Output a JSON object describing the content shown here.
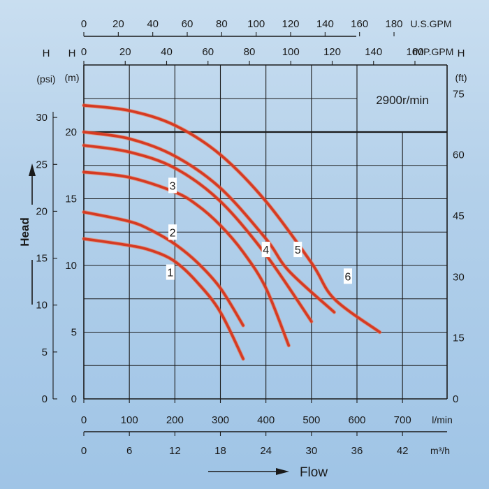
{
  "chart_data": {
    "type": "line",
    "title": "2900r/min",
    "xlabel": "Flow",
    "ylabel": "Head",
    "x_unit": "l/min",
    "xlim": [
      0,
      800
    ],
    "ylim_m": [
      0,
      25
    ],
    "x_ticks": [
      "0",
      "100",
      "200",
      "300",
      "400",
      "500",
      "600",
      "700"
    ],
    "axes": {
      "usgpm": {
        "unit": "U.S.GPM",
        "ticks": [
          "0",
          "20",
          "40",
          "60",
          "80",
          "100",
          "120",
          "140",
          "160",
          "180"
        ]
      },
      "impgpm": {
        "unit": "IMP.GPM",
        "ticks": [
          "0",
          "20",
          "40",
          "60",
          "80",
          "100",
          "120",
          "140",
          "160"
        ]
      },
      "m3h": {
        "unit": "m³/h",
        "ticks": [
          "0",
          "6",
          "12",
          "18",
          "24",
          "30",
          "36",
          "42"
        ]
      },
      "psi": {
        "title": "H",
        "unit": "(psi)",
        "ticks": [
          "0",
          "5",
          "10",
          "15",
          "20",
          "25",
          "30"
        ]
      },
      "meter": {
        "title": "H",
        "unit": "(m)",
        "ticks": [
          "0",
          "5",
          "10",
          "15",
          "20"
        ]
      },
      "feet": {
        "title": "H",
        "unit": "(ft)",
        "ticks": [
          "0",
          "15",
          "30",
          "45",
          "60",
          "75"
        ]
      }
    },
    "series": [
      {
        "name": "1",
        "x": [
          0,
          100,
          150,
          200,
          250,
          300,
          350
        ],
        "y": [
          12.0,
          11.5,
          11.1,
          10.3,
          8.7,
          6.5,
          3.0
        ]
      },
      {
        "name": "2",
        "x": [
          0,
          100,
          150,
          200,
          250,
          300,
          350
        ],
        "y": [
          14.0,
          13.3,
          12.6,
          11.6,
          10.2,
          8.3,
          5.5
        ]
      },
      {
        "name": "3",
        "x": [
          0,
          100,
          200,
          250,
          300,
          350,
          400,
          450
        ],
        "y": [
          17.0,
          16.6,
          15.5,
          14.5,
          13.0,
          11.0,
          8.3,
          4.0
        ]
      },
      {
        "name": "4",
        "x": [
          0,
          100,
          200,
          300,
          400,
          500
        ],
        "y": [
          19.0,
          18.5,
          17.3,
          14.8,
          10.8,
          5.8
        ]
      },
      {
        "name": "5",
        "x": [
          0,
          100,
          200,
          300,
          400,
          450,
          550
        ],
        "y": [
          20.0,
          19.5,
          18.2,
          15.8,
          12.0,
          9.6,
          6.5
        ]
      },
      {
        "name": "6",
        "x": [
          0,
          100,
          200,
          300,
          400,
          500,
          550,
          650
        ],
        "y": [
          22.0,
          21.6,
          20.5,
          18.3,
          14.8,
          10.2,
          7.5,
          5.0
        ]
      }
    ],
    "curve_labels": [
      {
        "series": "1",
        "text": "1",
        "x": 190,
        "y": 9.5
      },
      {
        "series": "2",
        "x": 195,
        "y": 12.5,
        "text": "2"
      },
      {
        "series": "3",
        "x": 195,
        "y": 16.0,
        "text": "3"
      },
      {
        "series": "4",
        "x": 400,
        "y": 11.2,
        "text": "4"
      },
      {
        "series": "5",
        "x": 470,
        "y": 11.2,
        "text": "5"
      },
      {
        "series": "6",
        "x": 580,
        "y": 9.2,
        "text": "6"
      }
    ],
    "colors": {
      "curve": "#d63a22",
      "grid": "#1a1a1a",
      "curve_edge": "#f26a3c"
    }
  }
}
